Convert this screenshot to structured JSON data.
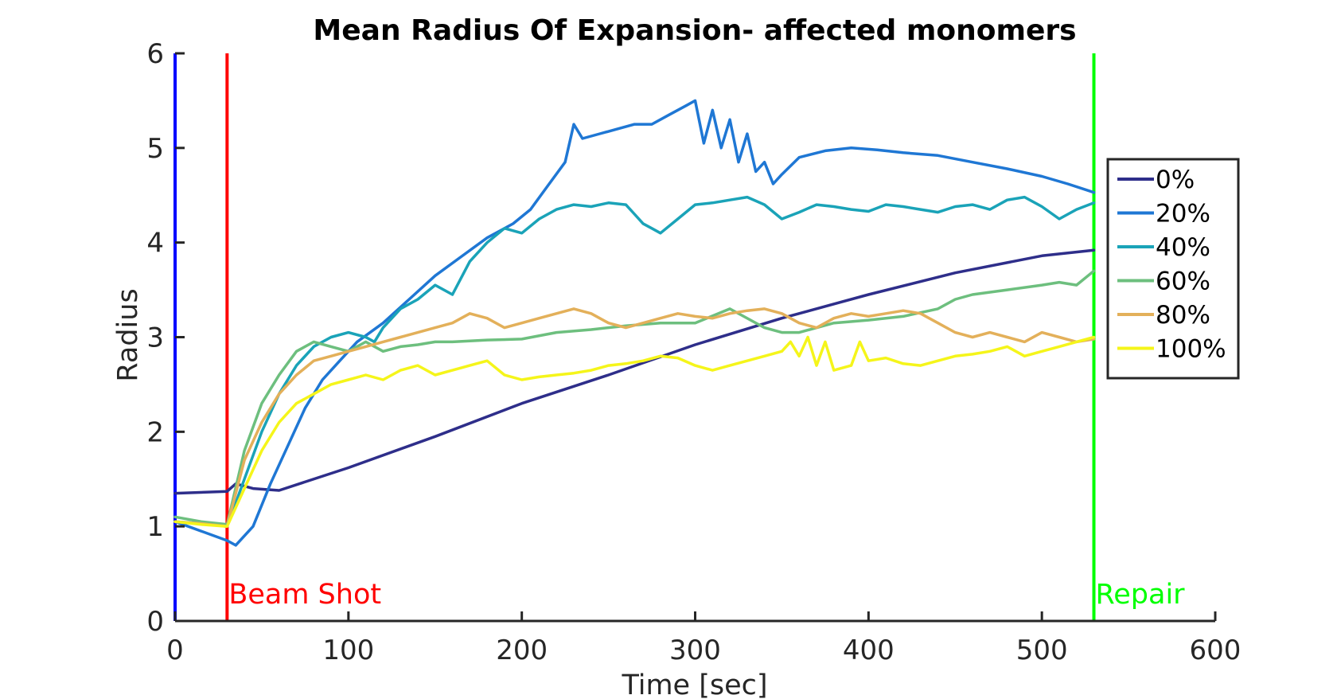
{
  "chart_data": {
    "type": "line",
    "title": "Mean Radius Of Expansion- affected monomers",
    "xlabel": "Time [sec]",
    "ylabel": "Radius",
    "xlim": [
      0,
      600
    ],
    "ylim": [
      0,
      6
    ],
    "xticks": [
      0,
      100,
      200,
      300,
      400,
      500,
      600
    ],
    "yticks": [
      0,
      1,
      2,
      3,
      4,
      5,
      6
    ],
    "grid": false,
    "legend_position": "right",
    "markers": [
      {
        "label": "",
        "x": 0,
        "color": "#0000ff"
      },
      {
        "label": "Beam Shot",
        "x": 30,
        "color": "#ff0000"
      },
      {
        "label": "Repair",
        "x": 530,
        "color": "#00ff00"
      }
    ],
    "series": [
      {
        "name": "0%",
        "color": "#2e2e8a",
        "x": [
          0,
          30,
          35,
          45,
          60,
          100,
          150,
          200,
          250,
          300,
          350,
          400,
          450,
          500,
          530
        ],
        "values": [
          1.35,
          1.37,
          1.45,
          1.4,
          1.38,
          1.62,
          1.95,
          2.3,
          2.6,
          2.92,
          3.2,
          3.45,
          3.68,
          3.86,
          3.92
        ]
      },
      {
        "name": "20%",
        "color": "#1f77d4",
        "x": [
          0,
          15,
          30,
          35,
          45,
          55,
          65,
          75,
          85,
          95,
          105,
          120,
          135,
          150,
          165,
          180,
          195,
          205,
          215,
          225,
          230,
          235,
          245,
          255,
          265,
          275,
          285,
          295,
          300,
          305,
          310,
          315,
          320,
          325,
          330,
          335,
          340,
          345,
          350,
          360,
          375,
          390,
          405,
          420,
          440,
          460,
          480,
          500,
          515,
          530
        ],
        "values": [
          1.05,
          0.95,
          0.85,
          0.8,
          1.0,
          1.45,
          1.85,
          2.25,
          2.55,
          2.75,
          2.95,
          3.15,
          3.4,
          3.65,
          3.85,
          4.05,
          4.2,
          4.35,
          4.6,
          4.85,
          5.25,
          5.1,
          5.15,
          5.2,
          5.25,
          5.25,
          5.35,
          5.45,
          5.5,
          5.05,
          5.4,
          5.0,
          5.3,
          4.85,
          5.15,
          4.75,
          4.85,
          4.62,
          4.72,
          4.9,
          4.97,
          5.0,
          4.98,
          4.95,
          4.92,
          4.85,
          4.78,
          4.7,
          4.62,
          4.53
        ]
      },
      {
        "name": "40%",
        "color": "#1aa3b8",
        "x": [
          0,
          15,
          30,
          40,
          50,
          60,
          70,
          80,
          90,
          100,
          110,
          115,
          120,
          130,
          140,
          150,
          160,
          170,
          180,
          190,
          200,
          210,
          220,
          230,
          240,
          250,
          260,
          265,
          270,
          275,
          280,
          290,
          300,
          310,
          320,
          330,
          340,
          350,
          360,
          370,
          380,
          390,
          400,
          410,
          420,
          430,
          440,
          450,
          460,
          470,
          480,
          490,
          500,
          510,
          520,
          530
        ],
        "values": [
          1.05,
          1.03,
          1.0,
          1.5,
          2.0,
          2.4,
          2.7,
          2.9,
          3.0,
          3.05,
          3.0,
          2.95,
          3.1,
          3.3,
          3.4,
          3.55,
          3.45,
          3.8,
          4.0,
          4.15,
          4.1,
          4.25,
          4.35,
          4.4,
          4.38,
          4.42,
          4.4,
          4.3,
          4.2,
          4.15,
          4.1,
          4.25,
          4.4,
          4.42,
          4.45,
          4.48,
          4.4,
          4.25,
          4.32,
          4.4,
          4.38,
          4.35,
          4.33,
          4.4,
          4.38,
          4.35,
          4.32,
          4.38,
          4.4,
          4.35,
          4.45,
          4.48,
          4.38,
          4.25,
          4.35,
          4.42
        ]
      },
      {
        "name": "60%",
        "color": "#6dbf7e",
        "x": [
          0,
          15,
          30,
          40,
          50,
          60,
          70,
          80,
          90,
          100,
          110,
          120,
          130,
          140,
          150,
          160,
          180,
          200,
          220,
          240,
          260,
          280,
          300,
          320,
          340,
          350,
          360,
          380,
          400,
          420,
          440,
          450,
          460,
          480,
          500,
          510,
          520,
          530
        ],
        "values": [
          1.1,
          1.05,
          1.02,
          1.8,
          2.3,
          2.6,
          2.85,
          2.95,
          2.9,
          2.85,
          2.95,
          2.85,
          2.9,
          2.92,
          2.95,
          2.95,
          2.97,
          2.98,
          3.05,
          3.08,
          3.12,
          3.15,
          3.15,
          3.3,
          3.1,
          3.05,
          3.05,
          3.15,
          3.18,
          3.22,
          3.3,
          3.4,
          3.45,
          3.5,
          3.55,
          3.58,
          3.55,
          3.7
        ]
      },
      {
        "name": "80%",
        "color": "#e3b05a",
        "x": [
          0,
          15,
          30,
          40,
          50,
          60,
          70,
          80,
          90,
          100,
          110,
          120,
          130,
          140,
          150,
          160,
          170,
          180,
          190,
          200,
          210,
          220,
          230,
          240,
          250,
          260,
          270,
          280,
          290,
          300,
          310,
          320,
          330,
          340,
          350,
          360,
          370,
          380,
          390,
          400,
          410,
          420,
          430,
          440,
          450,
          460,
          470,
          480,
          490,
          500,
          510,
          520,
          530
        ],
        "values": [
          1.05,
          1.03,
          1.0,
          1.7,
          2.1,
          2.4,
          2.6,
          2.75,
          2.8,
          2.85,
          2.9,
          2.95,
          3.0,
          3.05,
          3.1,
          3.15,
          3.25,
          3.2,
          3.1,
          3.15,
          3.2,
          3.25,
          3.3,
          3.25,
          3.15,
          3.1,
          3.15,
          3.2,
          3.25,
          3.22,
          3.2,
          3.25,
          3.28,
          3.3,
          3.25,
          3.15,
          3.1,
          3.2,
          3.25,
          3.22,
          3.25,
          3.28,
          3.25,
          3.15,
          3.05,
          3.0,
          3.05,
          3.0,
          2.95,
          3.05,
          3.0,
          2.95,
          2.98
        ]
      },
      {
        "name": "100%",
        "color": "#f5f51a",
        "x": [
          0,
          15,
          30,
          40,
          50,
          60,
          70,
          80,
          90,
          100,
          110,
          120,
          130,
          140,
          150,
          160,
          170,
          180,
          190,
          200,
          210,
          220,
          230,
          240,
          250,
          260,
          270,
          280,
          290,
          300,
          310,
          320,
          330,
          340,
          350,
          355,
          360,
          365,
          370,
          375,
          380,
          390,
          395,
          400,
          410,
          420,
          430,
          440,
          450,
          460,
          470,
          480,
          490,
          500,
          510,
          520,
          530
        ],
        "values": [
          1.05,
          1.02,
          1.0,
          1.4,
          1.8,
          2.1,
          2.3,
          2.4,
          2.5,
          2.55,
          2.6,
          2.55,
          2.65,
          2.7,
          2.6,
          2.65,
          2.7,
          2.75,
          2.6,
          2.55,
          2.58,
          2.6,
          2.62,
          2.65,
          2.7,
          2.72,
          2.75,
          2.8,
          2.78,
          2.7,
          2.65,
          2.7,
          2.75,
          2.8,
          2.85,
          2.95,
          2.8,
          3.0,
          2.7,
          2.95,
          2.65,
          2.7,
          2.95,
          2.75,
          2.78,
          2.72,
          2.7,
          2.75,
          2.8,
          2.82,
          2.85,
          2.9,
          2.8,
          2.85,
          2.9,
          2.95,
          3.0
        ]
      }
    ]
  }
}
